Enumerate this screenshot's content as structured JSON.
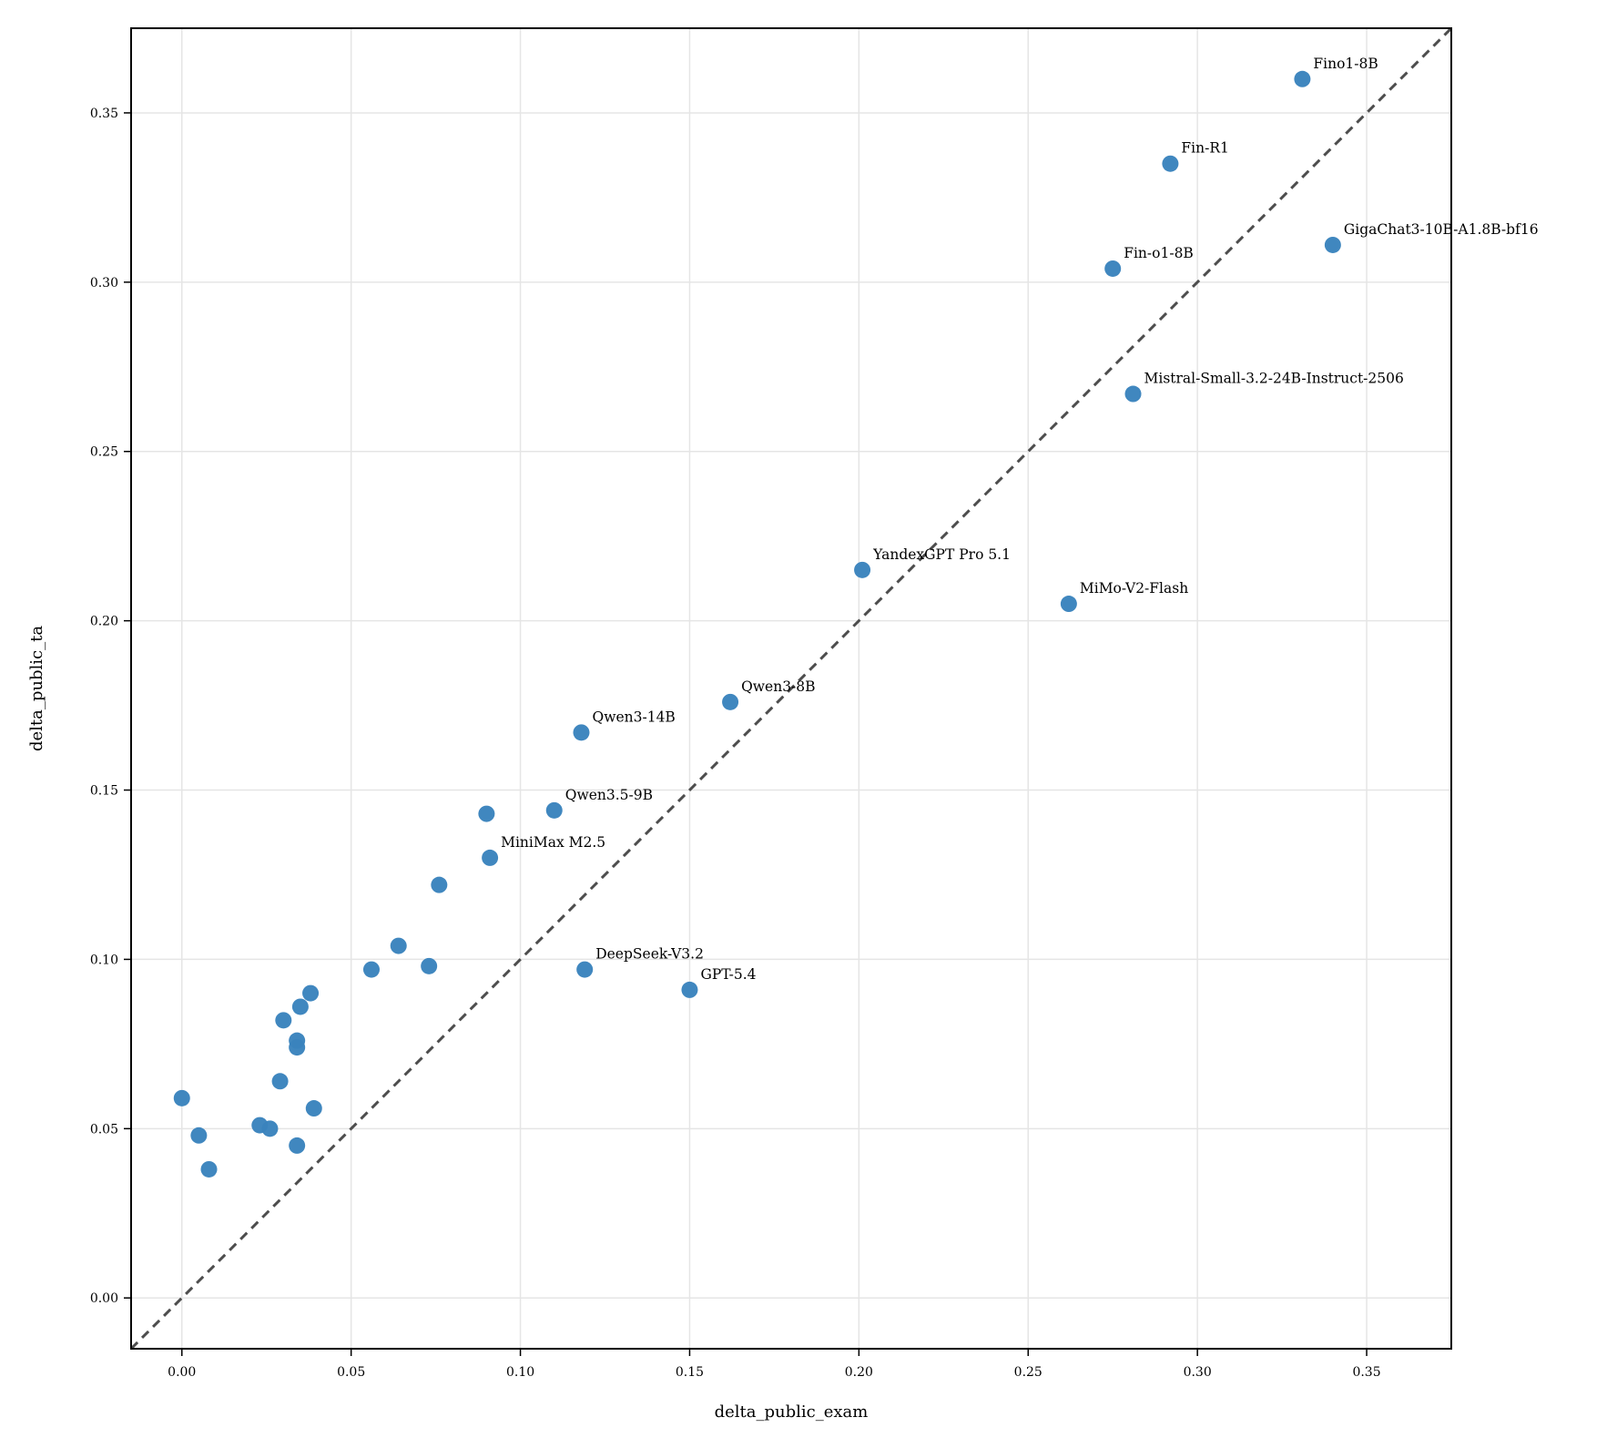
{
  "chart_data": {
    "type": "scatter",
    "title": "",
    "xlabel": "delta_public_exam",
    "ylabel": "delta_public_ta",
    "xlim": [
      -0.015,
      0.375
    ],
    "ylim": [
      -0.015,
      0.375
    ],
    "xticks": [
      "0.00",
      "0.05",
      "0.10",
      "0.15",
      "0.20",
      "0.25",
      "0.30",
      "0.35"
    ],
    "yticks": [
      "0.00",
      "0.05",
      "0.10",
      "0.15",
      "0.20",
      "0.25",
      "0.30",
      "0.35"
    ],
    "grid": true,
    "reference_line": "y = x",
    "point_color": "#3a83bd",
    "points": [
      {
        "x": 0.331,
        "y": 0.36,
        "label": "Fino1-8B"
      },
      {
        "x": 0.292,
        "y": 0.335,
        "label": "Fin-R1"
      },
      {
        "x": 0.34,
        "y": 0.311,
        "label": "GigaChat3-10B-A1.8B-bf16"
      },
      {
        "x": 0.275,
        "y": 0.304,
        "label": "Fin-o1-8B"
      },
      {
        "x": 0.281,
        "y": 0.267,
        "label": "Mistral-Small-3.2-24B-Instruct-2506"
      },
      {
        "x": 0.201,
        "y": 0.215,
        "label": "YandexGPT Pro 5.1"
      },
      {
        "x": 0.262,
        "y": 0.205,
        "label": "MiMo-V2-Flash"
      },
      {
        "x": 0.162,
        "y": 0.176,
        "label": "Qwen3-8B"
      },
      {
        "x": 0.118,
        "y": 0.167,
        "label": "Qwen3-14B"
      },
      {
        "x": 0.11,
        "y": 0.144,
        "label": "Qwen3.5-9B"
      },
      {
        "x": 0.091,
        "y": 0.13,
        "label": "MiniMax M2.5"
      },
      {
        "x": 0.119,
        "y": 0.097,
        "label": "DeepSeek-V3.2"
      },
      {
        "x": 0.15,
        "y": 0.091,
        "label": "GPT-5.4"
      },
      {
        "x": 0.09,
        "y": 0.143,
        "label": ""
      },
      {
        "x": 0.076,
        "y": 0.122,
        "label": ""
      },
      {
        "x": 0.064,
        "y": 0.104,
        "label": ""
      },
      {
        "x": 0.073,
        "y": 0.098,
        "label": ""
      },
      {
        "x": 0.056,
        "y": 0.097,
        "label": ""
      },
      {
        "x": 0.038,
        "y": 0.09,
        "label": ""
      },
      {
        "x": 0.035,
        "y": 0.086,
        "label": ""
      },
      {
        "x": 0.03,
        "y": 0.082,
        "label": ""
      },
      {
        "x": 0.034,
        "y": 0.076,
        "label": ""
      },
      {
        "x": 0.034,
        "y": 0.074,
        "label": ""
      },
      {
        "x": 0.029,
        "y": 0.064,
        "label": ""
      },
      {
        "x": 0.039,
        "y": 0.056,
        "label": ""
      },
      {
        "x": 0.0,
        "y": 0.059,
        "label": ""
      },
      {
        "x": 0.023,
        "y": 0.051,
        "label": ""
      },
      {
        "x": 0.026,
        "y": 0.05,
        "label": ""
      },
      {
        "x": 0.005,
        "y": 0.048,
        "label": ""
      },
      {
        "x": 0.034,
        "y": 0.045,
        "label": ""
      },
      {
        "x": 0.008,
        "y": 0.038,
        "label": ""
      }
    ]
  }
}
